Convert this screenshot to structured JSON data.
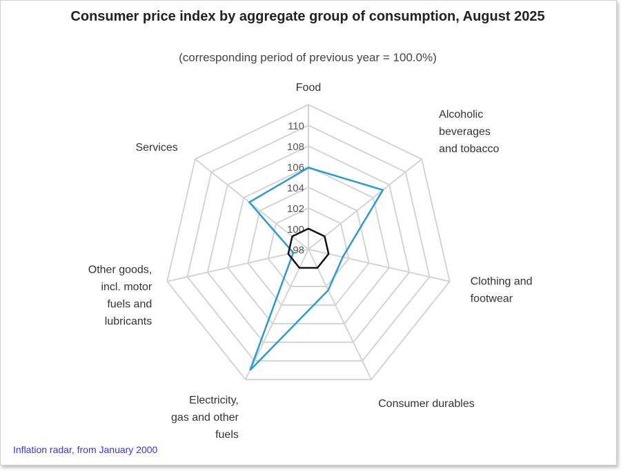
{
  "chart_data": {
    "type": "radar",
    "title": "Consumer price index by aggregate group of consumption, August 2025",
    "subtitle": "(corresponding period of previous year = 100.0%)",
    "categories": [
      "Food",
      "Alcoholic beverages and tobacco",
      "Clothing and footwear",
      "Consumer durables",
      "Electricity, gas and other fuels",
      "Other goods, incl. motor fuels and lubricants",
      "Services"
    ],
    "category_lines": [
      [
        "Food"
      ],
      [
        "Alcoholic",
        "beverages",
        "and tobacco"
      ],
      [
        "Clothing and",
        "footwear"
      ],
      [
        "Consumer durables"
      ],
      [
        "Electricity,",
        "gas and other",
        "fuels"
      ],
      [
        "Other goods,",
        "incl. motor",
        "fuels and",
        "lubricants"
      ],
      [
        "Services"
      ]
    ],
    "rlim": [
      98,
      112
    ],
    "ticks": [
      98,
      100,
      102,
      104,
      106,
      108,
      110
    ],
    "grid": true,
    "series": [
      {
        "values": [
          105.9,
          107.2,
          101.4,
          102.4,
          111.0,
          99.5,
          105.3
        ],
        "color": "#2a9ad6"
      },
      {
        "values": [
          100,
          100,
          100,
          100,
          100,
          100,
          100
        ],
        "color": "#111111"
      }
    ]
  },
  "footer": {
    "link": "Inflation radar, from January 2000"
  }
}
